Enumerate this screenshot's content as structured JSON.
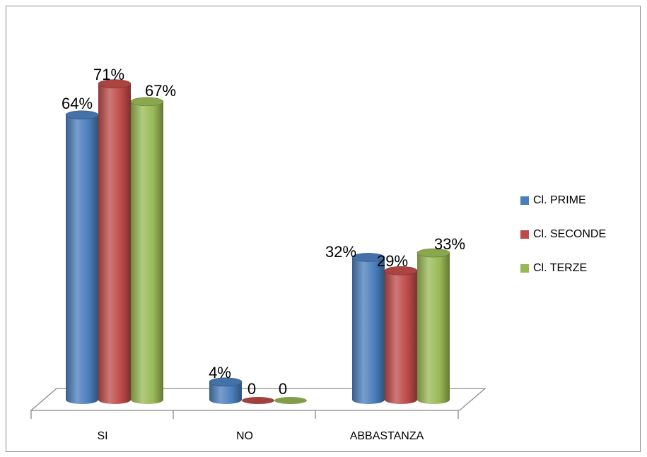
{
  "chart_data": {
    "type": "bar",
    "style": "3d-cylinder",
    "categories": [
      "SI",
      "NO",
      "ABBASTANZA"
    ],
    "series": [
      {
        "name": "Cl. PRIME",
        "color": "#4A7EBB",
        "values": [
          64,
          4,
          32
        ],
        "labels": [
          "64%",
          "4%",
          "32%"
        ]
      },
      {
        "name": "Cl. SECONDE",
        "color": "#BE4B48",
        "values": [
          71,
          0,
          29
        ],
        "labels": [
          "71%",
          "0",
          "29%"
        ]
      },
      {
        "name": "Cl. TERZE",
        "color": "#98B954",
        "values": [
          67,
          0,
          33
        ],
        "labels": [
          "67%",
          "0",
          "33%"
        ]
      }
    ],
    "ylim": [
      0,
      80
    ],
    "grid": false,
    "legend_position": "right"
  }
}
